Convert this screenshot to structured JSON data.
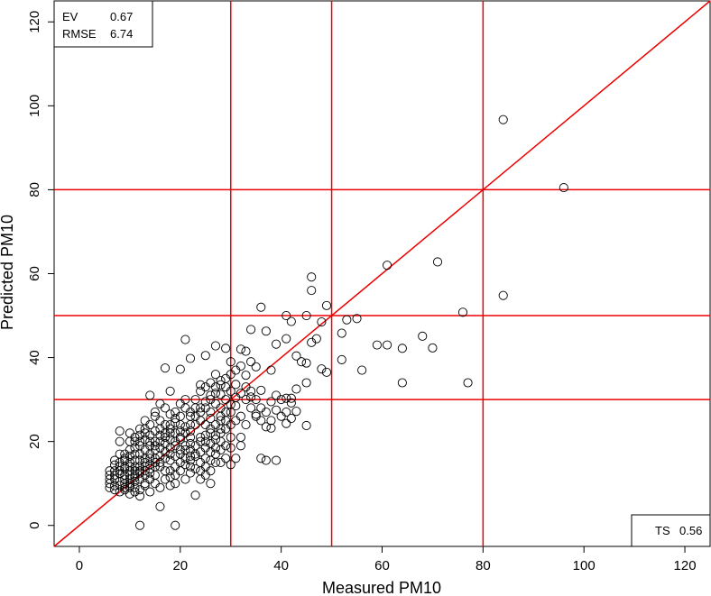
{
  "chart_data": {
    "type": "scatter",
    "title": "",
    "xlabel": "Measured PM10",
    "ylabel": "Predicted PM10",
    "xlim": [
      -5,
      125
    ],
    "ylim": [
      -5,
      125
    ],
    "xticks": [
      "0",
      "20",
      "40",
      "60",
      "80",
      "100",
      "120"
    ],
    "yticks": [
      "0",
      "20",
      "40",
      "60",
      "80",
      "100",
      "120"
    ],
    "grid": false,
    "reference_line": {
      "type": "identity",
      "color": "#ee0000"
    },
    "threshold_lines": {
      "x": [
        30,
        50,
        80
      ],
      "y": [
        30,
        50,
        80
      ],
      "color": "#ee0000"
    },
    "marker": "open-circle",
    "stats_box": {
      "ev_label": "EV",
      "ev_value": "0.67",
      "rmse_label": "RMSE",
      "rmse_value": "6.74"
    },
    "ts_box": {
      "label": "TS",
      "value": "0.56"
    },
    "points": [
      [
        12,
        0
      ],
      [
        19,
        0
      ],
      [
        84,
        96.7
      ],
      [
        96,
        80.5
      ],
      [
        61,
        62
      ],
      [
        71,
        62.8
      ],
      [
        84,
        54.8
      ],
      [
        76,
        50.8
      ],
      [
        46,
        59.2
      ],
      [
        46,
        56
      ],
      [
        49,
        52.4
      ],
      [
        36,
        52
      ],
      [
        45,
        50
      ],
      [
        41,
        50
      ],
      [
        42,
        48.6
      ],
      [
        48,
        48.5
      ],
      [
        53,
        49
      ],
      [
        55,
        49.3
      ],
      [
        52,
        45.8
      ],
      [
        47,
        44.5
      ],
      [
        46,
        43.6
      ],
      [
        41,
        44.5
      ],
      [
        39,
        43.2
      ],
      [
        34,
        46.7
      ],
      [
        37,
        46.3
      ],
      [
        59,
        43
      ],
      [
        61,
        43
      ],
      [
        64,
        42.2
      ],
      [
        68,
        45.1
      ],
      [
        70,
        42.3
      ],
      [
        77,
        34
      ],
      [
        64,
        34
      ],
      [
        56,
        37
      ],
      [
        52,
        39.5
      ],
      [
        48,
        37.3
      ],
      [
        49,
        36.5
      ],
      [
        44,
        39
      ],
      [
        43,
        40.4
      ],
      [
        45,
        38.7
      ],
      [
        21,
        44.3
      ],
      [
        27,
        42.8
      ],
      [
        29,
        42.2
      ],
      [
        32,
        42
      ],
      [
        33,
        41.5
      ],
      [
        30,
        39
      ],
      [
        34,
        39
      ],
      [
        35,
        37.8
      ],
      [
        38,
        37
      ],
      [
        42,
        29.2
      ],
      [
        43,
        32.5
      ],
      [
        39,
        31
      ],
      [
        40,
        30
      ],
      [
        45,
        34
      ],
      [
        45,
        23.8
      ],
      [
        41,
        24.3
      ],
      [
        38,
        23.2
      ],
      [
        37,
        23.5
      ],
      [
        36,
        16
      ],
      [
        37,
        15.5
      ],
      [
        39,
        15.5
      ],
      [
        35,
        26.5
      ],
      [
        32,
        21
      ],
      [
        30,
        18.5
      ],
      [
        26,
        10
      ],
      [
        23,
        7.2
      ],
      [
        16,
        4.5
      ],
      [
        12,
        7
      ],
      [
        8,
        8
      ],
      [
        6,
        12
      ],
      [
        7,
        14.4
      ],
      [
        14,
        31
      ],
      [
        18,
        32
      ],
      [
        17,
        37.5
      ],
      [
        20,
        37.2
      ],
      [
        22,
        39.8
      ],
      [
        25,
        40.5
      ],
      [
        27,
        36
      ],
      [
        24,
        33.5
      ],
      [
        33,
        35.8
      ],
      [
        31,
        33.6
      ],
      [
        28,
        31.2
      ],
      [
        36,
        32.2
      ],
      [
        34,
        30.6
      ],
      [
        42,
        30.3
      ],
      [
        41,
        30.3
      ],
      [
        38,
        25
      ],
      [
        33,
        24
      ],
      [
        28,
        23
      ],
      [
        26,
        22
      ],
      [
        22,
        19.5
      ],
      [
        20,
        18
      ],
      [
        18,
        17
      ],
      [
        15,
        16
      ],
      [
        13,
        15
      ],
      [
        11,
        14
      ],
      [
        10,
        13
      ],
      [
        9,
        12
      ],
      [
        8,
        12.3
      ],
      [
        7,
        11
      ],
      [
        9,
        10
      ],
      [
        10,
        9
      ],
      [
        11,
        8
      ],
      [
        13,
        10
      ],
      [
        14,
        11
      ],
      [
        12,
        12.5
      ],
      [
        10,
        15
      ],
      [
        9,
        17
      ],
      [
        8,
        20
      ],
      [
        8,
        22.5
      ],
      [
        10,
        20
      ],
      [
        12,
        19
      ],
      [
        13,
        22
      ],
      [
        14,
        24
      ],
      [
        15,
        26
      ],
      [
        16,
        23
      ],
      [
        17,
        21
      ],
      [
        19,
        19
      ],
      [
        21,
        22
      ],
      [
        22,
        24
      ],
      [
        23,
        26
      ],
      [
        24,
        28
      ],
      [
        25,
        24
      ],
      [
        26,
        27
      ],
      [
        27,
        29
      ],
      [
        28,
        26
      ],
      [
        29,
        25
      ],
      [
        30,
        27
      ],
      [
        31,
        28.5
      ],
      [
        29,
        30
      ],
      [
        26,
        31
      ],
      [
        25,
        29.5
      ],
      [
        23,
        30
      ],
      [
        21,
        28
      ],
      [
        20,
        26
      ],
      [
        19,
        24.5
      ],
      [
        18,
        26.5
      ],
      [
        17,
        28
      ],
      [
        16,
        29
      ],
      [
        15,
        27
      ],
      [
        13,
        25
      ],
      [
        12,
        23
      ],
      [
        11,
        21
      ],
      [
        10,
        18
      ],
      [
        11,
        17
      ],
      [
        13,
        18
      ],
      [
        14,
        19
      ],
      [
        15,
        20
      ],
      [
        16,
        18.5
      ],
      [
        18,
        20.5
      ],
      [
        19,
        22
      ],
      [
        20,
        21
      ],
      [
        22,
        22.5
      ],
      [
        24,
        21
      ],
      [
        25,
        20
      ],
      [
        27,
        21.5
      ],
      [
        28,
        20
      ],
      [
        29,
        19
      ],
      [
        27,
        17
      ],
      [
        26,
        15.5
      ],
      [
        25,
        14
      ],
      [
        24,
        13
      ],
      [
        22,
        12.5
      ],
      [
        21,
        11
      ],
      [
        19,
        10
      ],
      [
        18,
        11.5
      ],
      [
        17,
        13
      ],
      [
        16,
        14
      ],
      [
        15,
        12
      ],
      [
        14,
        13.5
      ],
      [
        13,
        13
      ],
      [
        12,
        11
      ],
      [
        11,
        10.5
      ],
      [
        10,
        11
      ],
      [
        9,
        13.5
      ],
      [
        8,
        15
      ],
      [
        7,
        13
      ],
      [
        6,
        10
      ],
      [
        6,
        9
      ],
      [
        7,
        9.5
      ],
      [
        8,
        10.5
      ],
      [
        9,
        8.5
      ],
      [
        10,
        7.5
      ],
      [
        11,
        9
      ],
      [
        12,
        8.5
      ],
      [
        13,
        9.5
      ],
      [
        14,
        8
      ],
      [
        15,
        10
      ],
      [
        16,
        9
      ],
      [
        17,
        11
      ],
      [
        18,
        9.5
      ],
      [
        19,
        12
      ],
      [
        20,
        13
      ],
      [
        21,
        14.5
      ],
      [
        22,
        15.5
      ],
      [
        23,
        16.5
      ],
      [
        24,
        17.5
      ],
      [
        25,
        18.5
      ],
      [
        26,
        19.5
      ],
      [
        27,
        20.5
      ],
      [
        28,
        22
      ],
      [
        29,
        23
      ],
      [
        30,
        24
      ],
      [
        31,
        25
      ],
      [
        32,
        26
      ],
      [
        30,
        21
      ],
      [
        28,
        18
      ],
      [
        27,
        15
      ],
      [
        26,
        13
      ],
      [
        25,
        12
      ],
      [
        24,
        11
      ],
      [
        23,
        13.5
      ],
      [
        22,
        14
      ],
      [
        21,
        16
      ],
      [
        20,
        15
      ],
      [
        19,
        14
      ],
      [
        18,
        15.5
      ],
      [
        17,
        16
      ],
      [
        16,
        16.5
      ],
      [
        15,
        15
      ],
      [
        14,
        14.5
      ],
      [
        13,
        16
      ],
      [
        12,
        15.5
      ],
      [
        11,
        13
      ],
      [
        10,
        12
      ],
      [
        9,
        11
      ],
      [
        8,
        9.5
      ],
      [
        7,
        8.5
      ],
      [
        6,
        11
      ],
      [
        6,
        13
      ],
      [
        7,
        12
      ],
      [
        8,
        14
      ],
      [
        9,
        15.5
      ],
      [
        10,
        16.5
      ],
      [
        11,
        18.5
      ],
      [
        12,
        20
      ],
      [
        13,
        20.5
      ],
      [
        14,
        21.5
      ],
      [
        15,
        22.5
      ],
      [
        16,
        25
      ],
      [
        17,
        24
      ],
      [
        18,
        23
      ],
      [
        19,
        27
      ],
      [
        20,
        29
      ],
      [
        21,
        30
      ],
      [
        22,
        27
      ],
      [
        23,
        28
      ],
      [
        24,
        32
      ],
      [
        25,
        33
      ],
      [
        26,
        34
      ],
      [
        27,
        33
      ],
      [
        28,
        34.5
      ],
      [
        29,
        35
      ],
      [
        30,
        36
      ],
      [
        31,
        37
      ],
      [
        32,
        38
      ],
      [
        33,
        33
      ],
      [
        34,
        32
      ],
      [
        35,
        30
      ],
      [
        36,
        28
      ],
      [
        37,
        27
      ],
      [
        38,
        29.5
      ],
      [
        39,
        27.5
      ],
      [
        40,
        26
      ],
      [
        41,
        27
      ],
      [
        42,
        25.5
      ],
      [
        43,
        27.2
      ],
      [
        28,
        28
      ],
      [
        26,
        25.5
      ],
      [
        24,
        25
      ],
      [
        22,
        26
      ],
      [
        20,
        24
      ],
      [
        18,
        22
      ],
      [
        16,
        20
      ],
      [
        14,
        17
      ],
      [
        12,
        17
      ],
      [
        11,
        15.5
      ],
      [
        10,
        14
      ],
      [
        9,
        14
      ],
      [
        8,
        13
      ],
      [
        9,
        9
      ],
      [
        10,
        10
      ],
      [
        11,
        12
      ],
      [
        12,
        14
      ],
      [
        13,
        12
      ],
      [
        14,
        12.5
      ],
      [
        15,
        14
      ],
      [
        16,
        15
      ],
      [
        17,
        17.5
      ],
      [
        18,
        18.5
      ],
      [
        19,
        20
      ],
      [
        20,
        20.5
      ],
      [
        21,
        19
      ],
      [
        22,
        18
      ],
      [
        23,
        19
      ],
      [
        24,
        20
      ],
      [
        25,
        21.5
      ],
      [
        26,
        23
      ],
      [
        27,
        24
      ],
      [
        28,
        25
      ],
      [
        29,
        27
      ],
      [
        30,
        28.8
      ],
      [
        31,
        30.5
      ],
      [
        32,
        31.5
      ],
      [
        33,
        30
      ],
      [
        34,
        28
      ],
      [
        35,
        26
      ],
      [
        36,
        25
      ],
      [
        30,
        32
      ],
      [
        29,
        33
      ],
      [
        28,
        33.5
      ],
      [
        27,
        31.5
      ],
      [
        26,
        30
      ],
      [
        25,
        28
      ],
      [
        24,
        27
      ],
      [
        23,
        24
      ],
      [
        22,
        21
      ],
      [
        21,
        23.5
      ],
      [
        20,
        22.5
      ],
      [
        19,
        25.5
      ],
      [
        18,
        24
      ],
      [
        17,
        22
      ],
      [
        16,
        21.5
      ],
      [
        15,
        18
      ],
      [
        14,
        16
      ],
      [
        13,
        14
      ],
      [
        12,
        13
      ],
      [
        11,
        11.5
      ],
      [
        10,
        9.5
      ],
      [
        9,
        16
      ],
      [
        8,
        17
      ],
      [
        7,
        15.5
      ],
      [
        10,
        22
      ],
      [
        11,
        20
      ],
      [
        12,
        21.5
      ],
      [
        13,
        23
      ],
      [
        14,
        20
      ],
      [
        15,
        19
      ],
      [
        17,
        19.5
      ],
      [
        18,
        13
      ],
      [
        19,
        16.5
      ],
      [
        20,
        17
      ],
      [
        21,
        18
      ],
      [
        22,
        16.5
      ],
      [
        23,
        17
      ],
      [
        24,
        15
      ],
      [
        25,
        16
      ],
      [
        26,
        17.5
      ],
      [
        27,
        18.5
      ],
      [
        28,
        15
      ],
      [
        29,
        16
      ],
      [
        30,
        14.5
      ],
      [
        31,
        16
      ],
      [
        32,
        19
      ]
    ]
  }
}
